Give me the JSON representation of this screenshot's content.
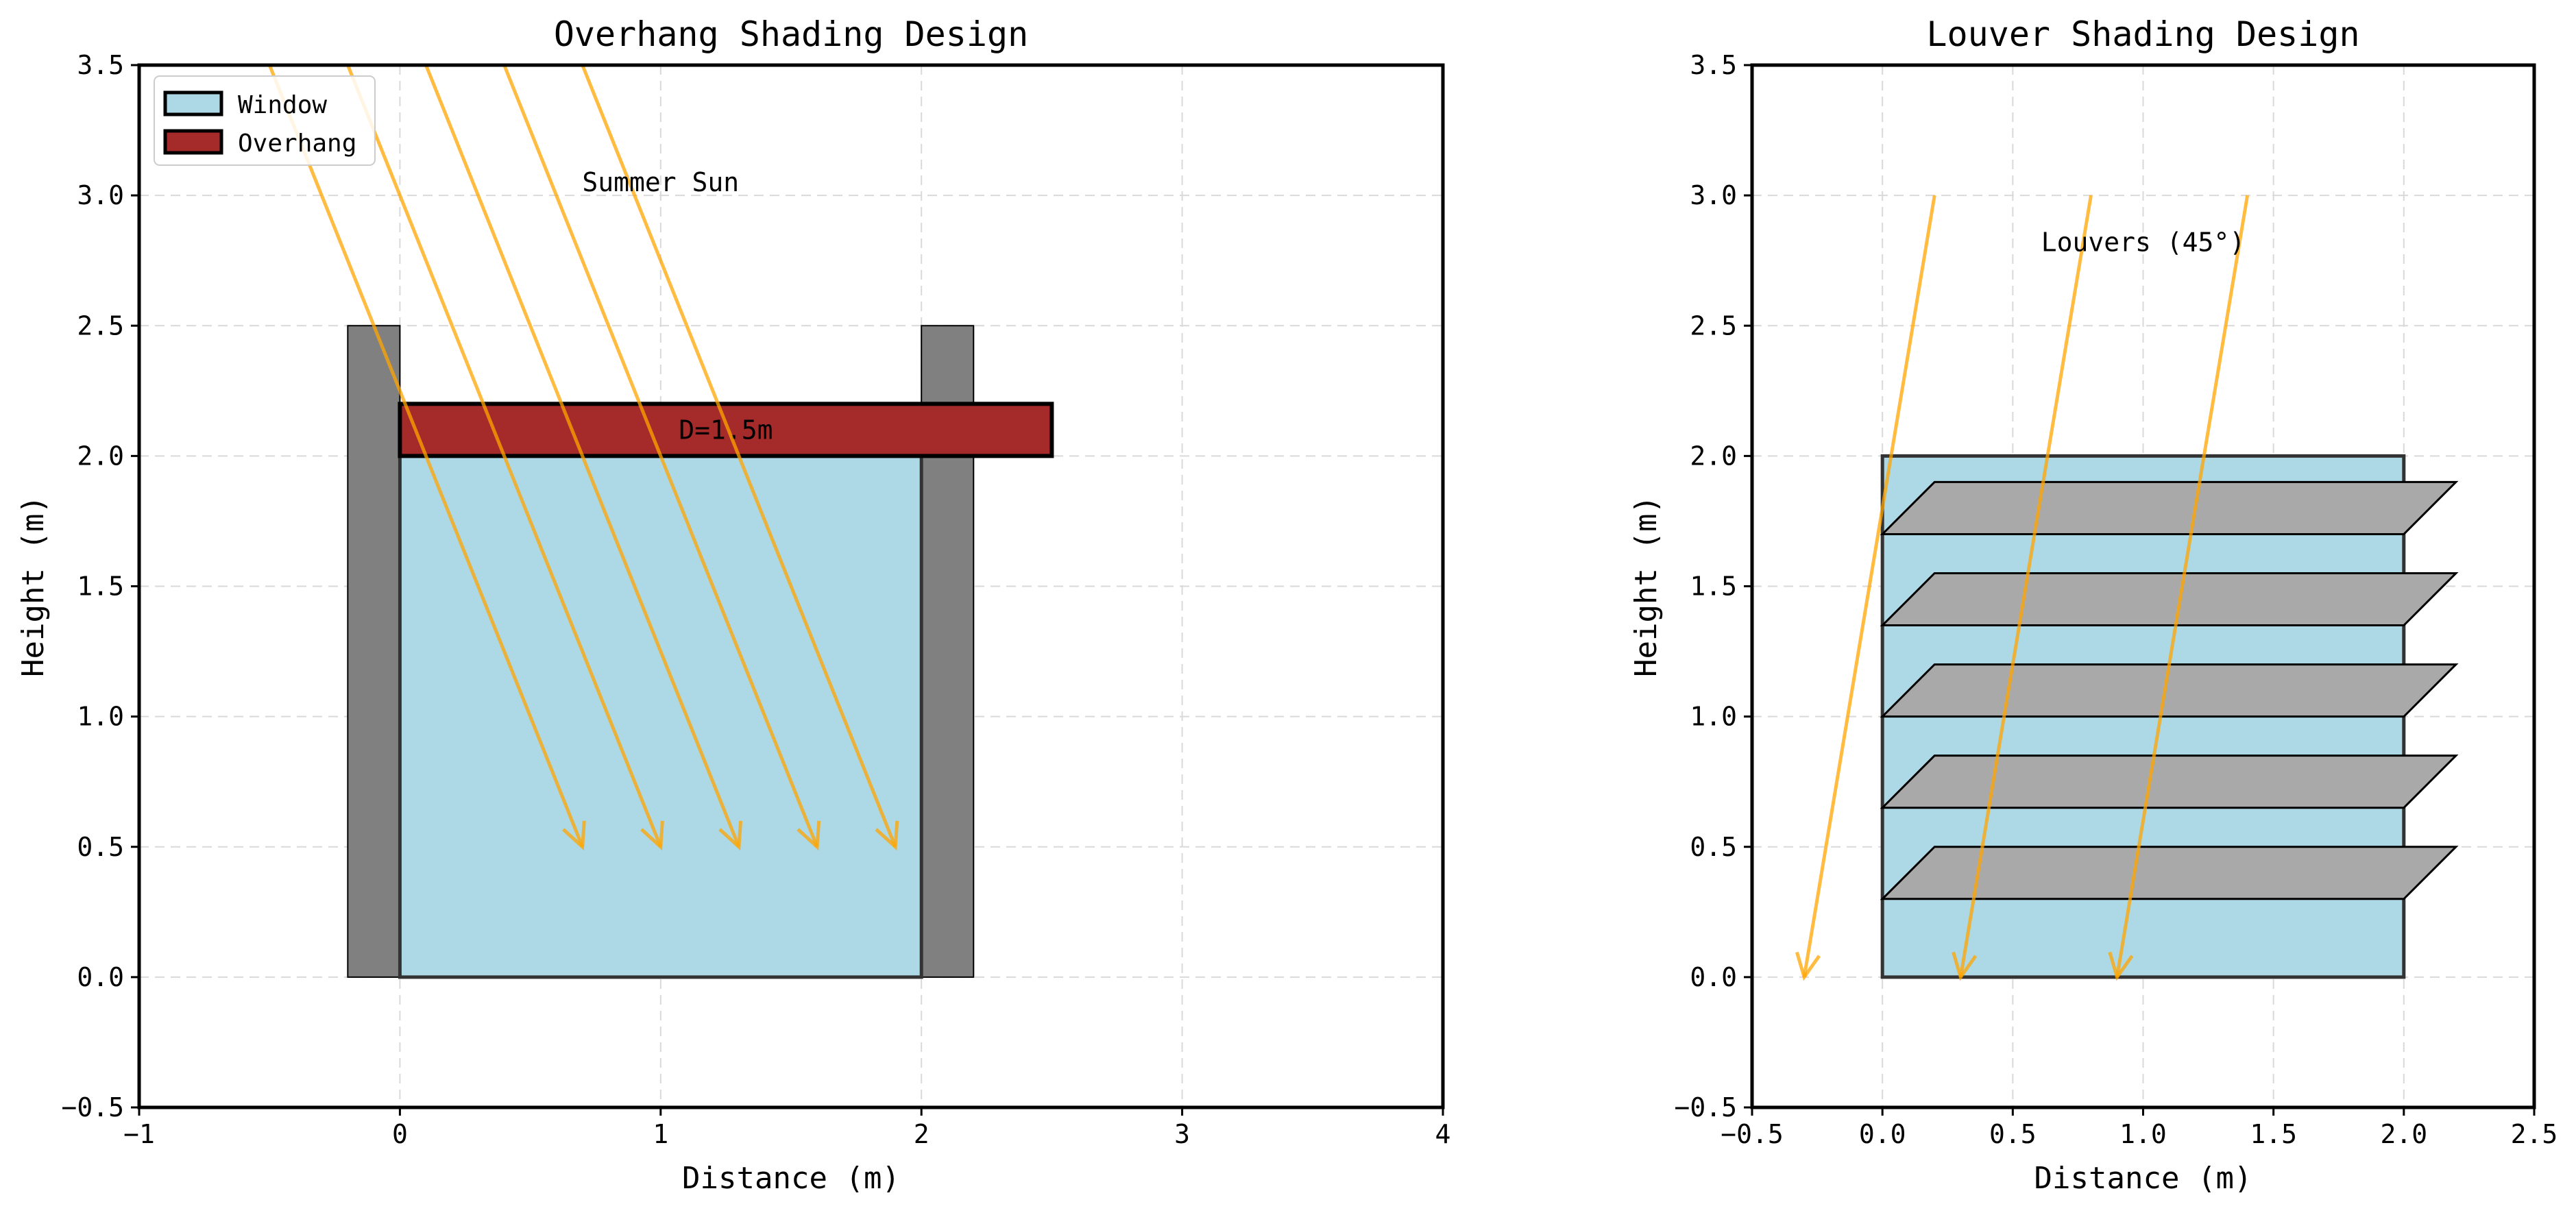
{
  "colors": {
    "window": "#add8e6",
    "overhang": "#a52a2a",
    "wall": "#808080",
    "louver": "#a9a9a9",
    "sun": "#ffa500",
    "grid": "#d9d9d9",
    "label_white": "#ffffff"
  },
  "chart_data": [
    {
      "type": "diagram",
      "title": "Overhang Shading Design",
      "xlabel": "Distance (m)",
      "ylabel": "Height (m)",
      "xlim": [
        -1,
        4
      ],
      "ylim": [
        -0.5,
        3.5
      ],
      "xticks": [
        "−1",
        "0",
        "1",
        "2",
        "3",
        "4"
      ],
      "xtick_values": [
        -1,
        0,
        1,
        2,
        3,
        4
      ],
      "yticks": [
        "−0.5",
        "0.0",
        "0.5",
        "1.0",
        "1.5",
        "2.0",
        "2.5",
        "3.0",
        "3.5"
      ],
      "ytick_values": [
        -0.5,
        0,
        0.5,
        1,
        1.5,
        2,
        2.5,
        3,
        3.5
      ],
      "grid": true,
      "legend": {
        "placement": "top-left",
        "entries": [
          {
            "label": "Window",
            "color": "#add8e6"
          },
          {
            "label": "Overhang",
            "color": "#a52a2a"
          }
        ]
      },
      "walls": [
        {
          "x": [
            -0.2,
            0
          ],
          "y": [
            0,
            2.5
          ]
        },
        {
          "x": [
            2,
            2.2
          ],
          "y": [
            0,
            2.5
          ]
        }
      ],
      "window": {
        "x": [
          0,
          2
        ],
        "y": [
          0,
          2
        ]
      },
      "overhang": {
        "x": [
          0,
          2.5
        ],
        "y": [
          2,
          2.2
        ],
        "label": "D=1.5m",
        "label_at": [
          1.25,
          2.1
        ]
      },
      "sun_rays": [
        {
          "from": [
            -0.5,
            3.5
          ],
          "to": [
            0.7,
            0.5
          ]
        },
        {
          "from": [
            -0.2,
            3.5
          ],
          "to": [
            1.0,
            0.5
          ]
        },
        {
          "from": [
            0.1,
            3.5
          ],
          "to": [
            1.3,
            0.5
          ]
        },
        {
          "from": [
            0.4,
            3.5
          ],
          "to": [
            1.6,
            0.5
          ]
        },
        {
          "from": [
            0.7,
            3.5
          ],
          "to": [
            1.9,
            0.5
          ]
        }
      ],
      "annotation": {
        "text": "Summer Sun",
        "at": [
          1.0,
          3.05
        ],
        "color": "#ffa500"
      }
    },
    {
      "type": "diagram",
      "title": "Louver Shading Design",
      "xlabel": "Distance (m)",
      "ylabel": "Height (m)",
      "xlim": [
        -0.5,
        2.5
      ],
      "ylim": [
        -0.5,
        3.5
      ],
      "xticks": [
        "−0.5",
        "0.0",
        "0.5",
        "1.0",
        "1.5",
        "2.0",
        "2.5"
      ],
      "xtick_values": [
        -0.5,
        0,
        0.5,
        1,
        1.5,
        2,
        2.5
      ],
      "yticks": [
        "−0.5",
        "0.0",
        "0.5",
        "1.0",
        "1.5",
        "2.0",
        "2.5",
        "3.0",
        "3.5"
      ],
      "ytick_values": [
        -0.5,
        0,
        0.5,
        1,
        1.5,
        2,
        2.5,
        3,
        3.5
      ],
      "grid": true,
      "window": {
        "x": [
          0,
          2
        ],
        "y": [
          0,
          2
        ]
      },
      "louvers": [
        {
          "y": 0.3,
          "thickness": 0.2,
          "depth": 0.2
        },
        {
          "y": 0.65,
          "thickness": 0.2,
          "depth": 0.2
        },
        {
          "y": 1.0,
          "thickness": 0.2,
          "depth": 0.2
        },
        {
          "y": 1.35,
          "thickness": 0.2,
          "depth": 0.2
        },
        {
          "y": 1.7,
          "thickness": 0.2,
          "depth": 0.2
        }
      ],
      "sun_rays": [
        {
          "from": [
            0.2,
            3.0
          ],
          "to": [
            -0.3,
            0.0
          ]
        },
        {
          "from": [
            0.8,
            3.0
          ],
          "to": [
            0.3,
            0.0
          ]
        },
        {
          "from": [
            1.4,
            3.0
          ],
          "to": [
            0.9,
            0.0
          ]
        }
      ],
      "annotation": {
        "text": "Louvers (45°)",
        "at": [
          1.0,
          2.82
        ],
        "color": "#000000"
      }
    }
  ]
}
